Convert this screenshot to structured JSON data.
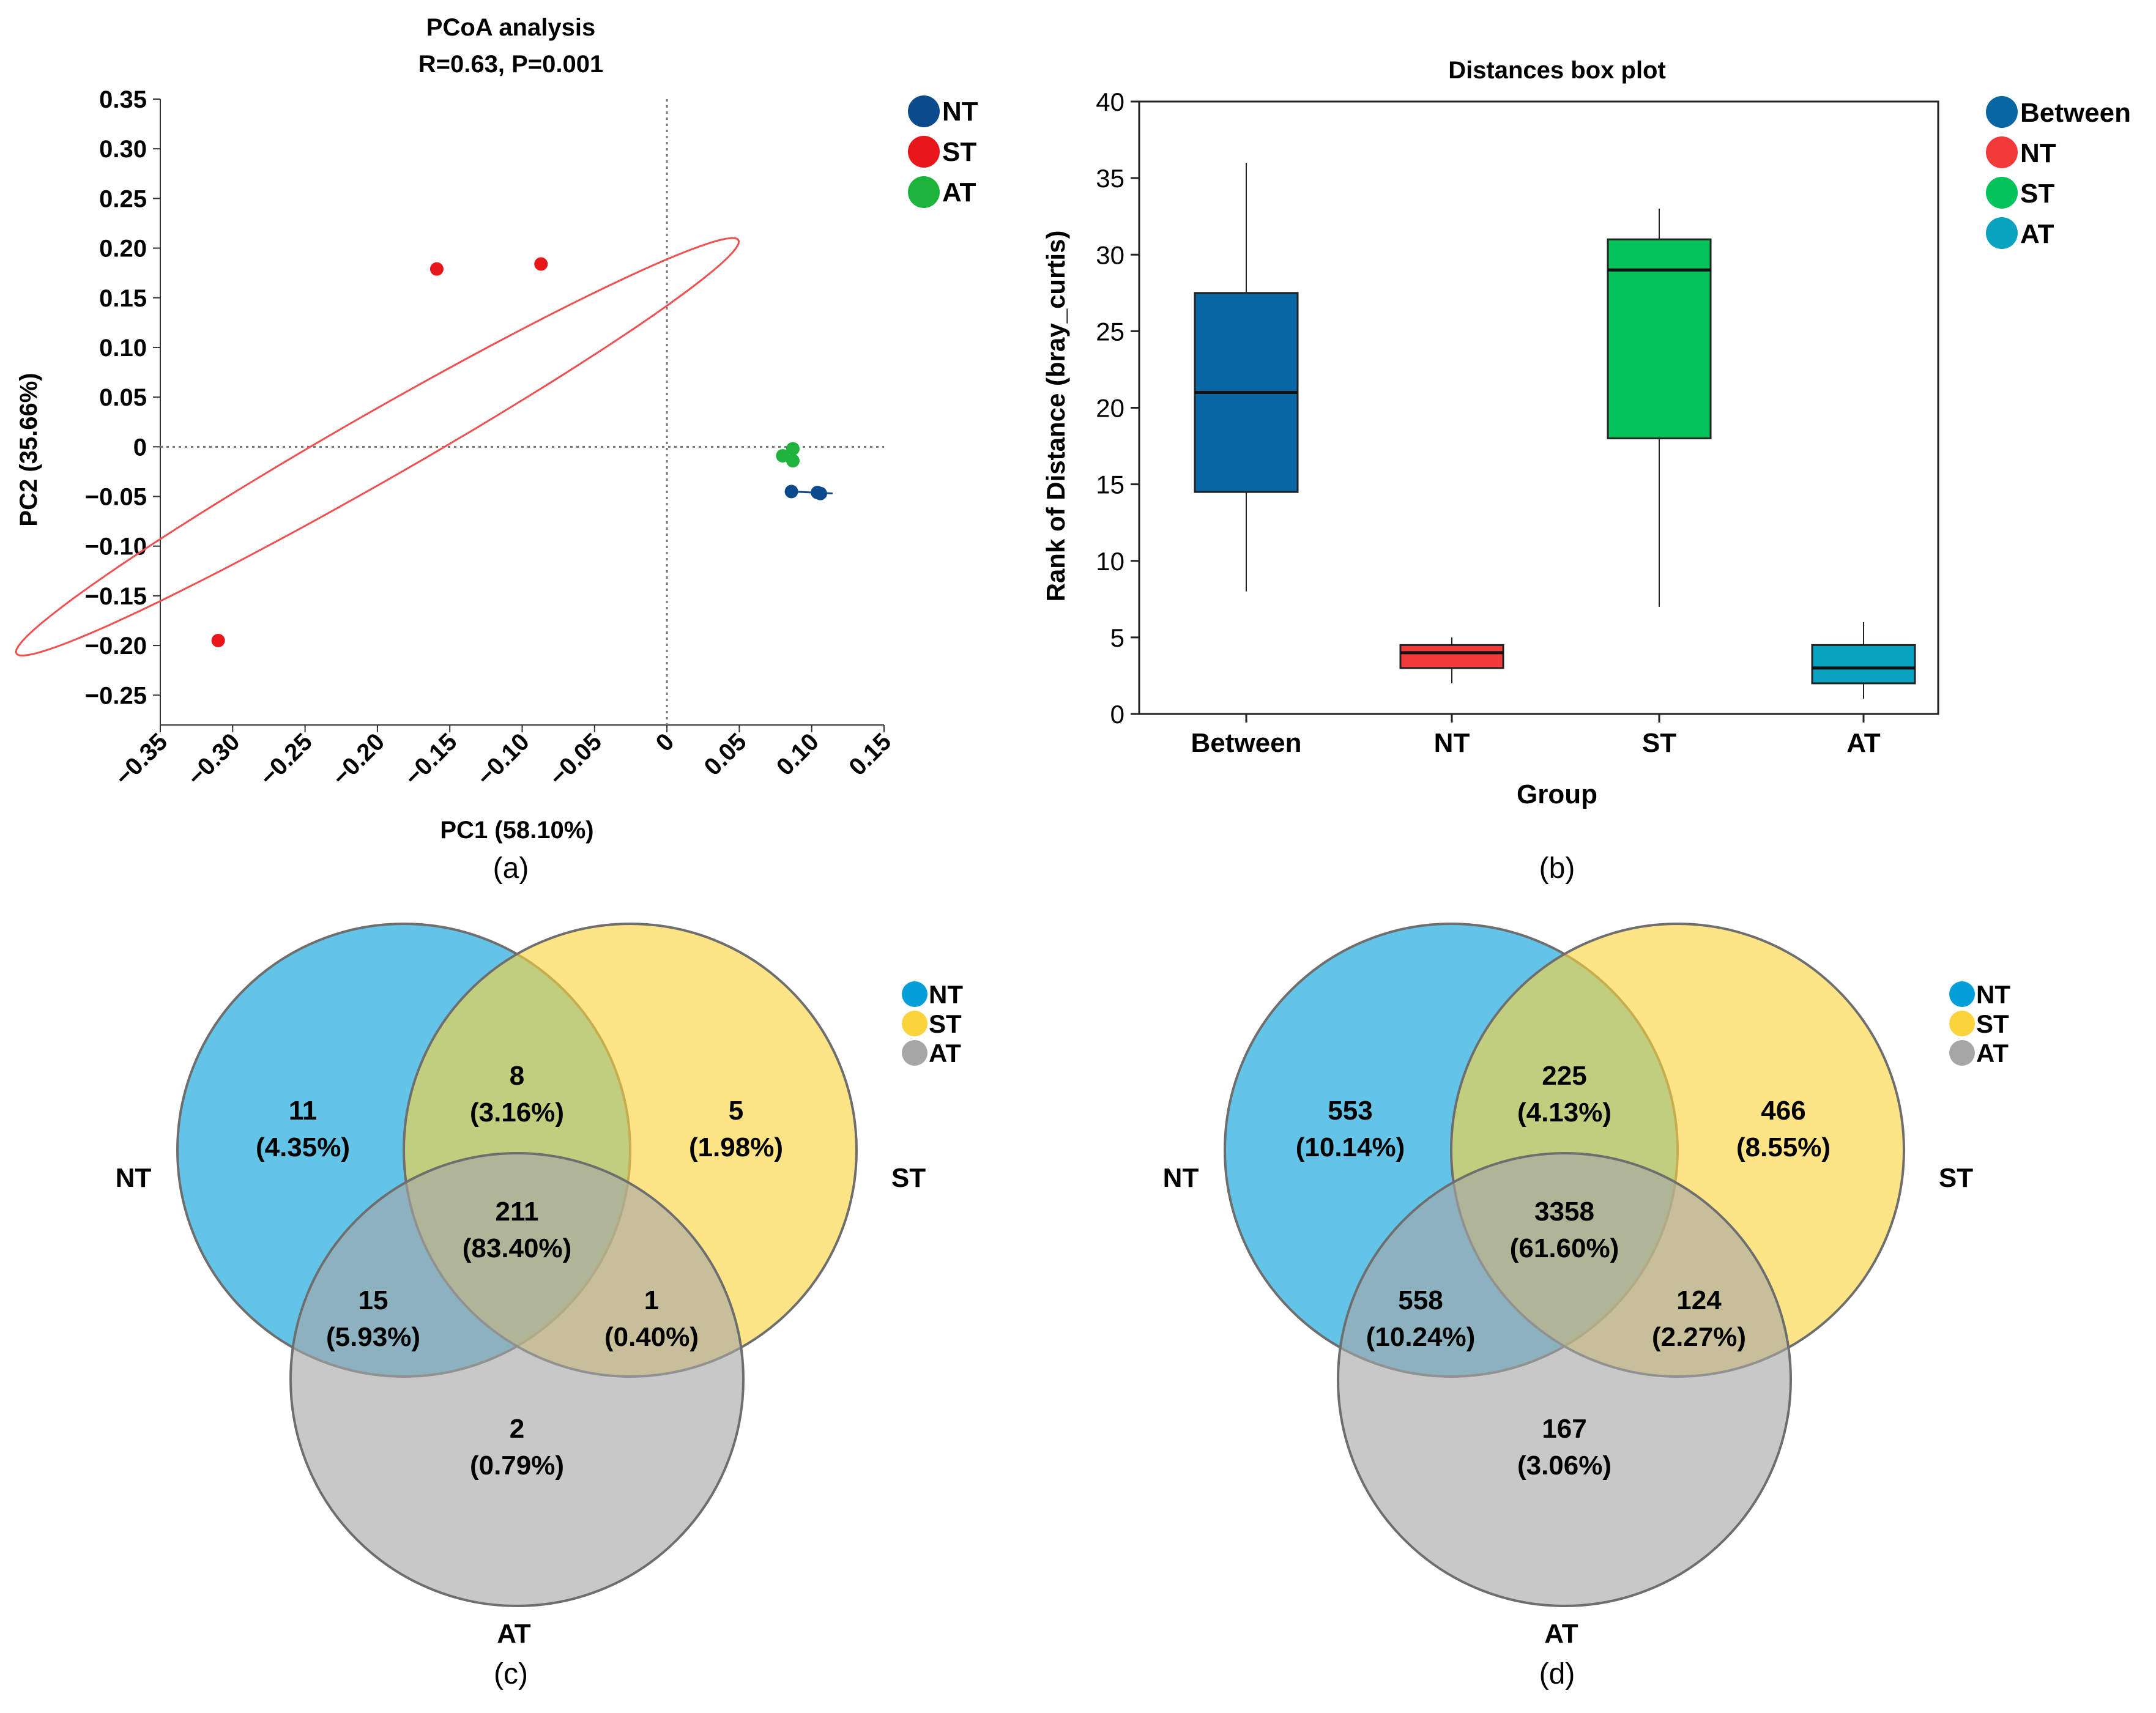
{
  "chart_data": [
    {
      "type": "scatter",
      "panel": "(a)",
      "title": "PCoA analysis",
      "subtitle": "R=0.63, P=0.001",
      "xlabel": "PC1 (58.10%)",
      "ylabel": "PC2 (35.66%)",
      "xlim": [
        -0.35,
        0.15
      ],
      "ylim": [
        -0.28,
        0.35
      ],
      "xticks": [
        -0.35,
        -0.3,
        -0.25,
        -0.2,
        -0.15,
        -0.1,
        -0.05,
        0,
        0.05,
        0.1,
        0.15
      ],
      "xtick_labels": [
        "−0.35",
        "−0.30",
        "−0.25",
        "−0.20",
        "−0.15",
        "−0.10",
        "−0.05",
        "0",
        "0.05",
        "0.10",
        "0.15"
      ],
      "yticks": [
        0.35,
        0.3,
        0.25,
        0.2,
        0.15,
        0.1,
        0.05,
        0,
        -0.05,
        -0.1,
        -0.15,
        -0.2,
        -0.25
      ],
      "ytick_labels": [
        "0.35",
        "0.30",
        "0.25",
        "0.20",
        "0.15",
        "0.10",
        "0.05",
        "0",
        "−0.05",
        "−0.10",
        "−0.15",
        "−0.20",
        "−0.25"
      ],
      "series": [
        {
          "name": "NT",
          "color": "#0b4a8c",
          "points": [
            [
              0.086,
              -0.045
            ],
            [
              0.104,
              -0.046
            ],
            [
              0.106,
              -0.047
            ]
          ]
        },
        {
          "name": "ST",
          "color": "#e8161b",
          "points": [
            [
              -0.31,
              -0.195
            ],
            [
              -0.159,
              0.179
            ],
            [
              -0.087,
              0.184
            ]
          ]
        },
        {
          "name": "AT",
          "color": "#1eb43c",
          "points": [
            [
              0.08,
              -0.009
            ],
            [
              0.087,
              -0.002
            ],
            [
              0.087,
              -0.014
            ]
          ]
        }
      ],
      "ellipses": [
        {
          "group": "ST",
          "color": "#f05050",
          "center": [
            -0.2,
            0.0
          ],
          "semi_major": 0.325,
          "semi_minor": 0.03,
          "angle_deg": 40
        }
      ],
      "legend": [
        {
          "label": "NT",
          "color": "#0b4a8c"
        },
        {
          "label": "ST",
          "color": "#e8161b"
        },
        {
          "label": "AT",
          "color": "#1eb43c"
        }
      ],
      "caption": "(a)"
    },
    {
      "type": "box",
      "panel": "(b)",
      "title": "Distances box plot",
      "xlabel": "Group",
      "ylabel": "Rank of Distance (bray_curtis)",
      "ylim": [
        0,
        40
      ],
      "yticks": [
        0,
        5,
        10,
        15,
        20,
        25,
        30,
        35,
        40
      ],
      "categories": [
        "Between",
        "NT",
        "ST",
        "AT"
      ],
      "boxes": [
        {
          "name": "Between",
          "color": "#0766a3",
          "min": 8,
          "q1": 14.5,
          "median": 21,
          "q3": 27.5,
          "max": 36
        },
        {
          "name": "NT",
          "color": "#f23a3a",
          "min": 2,
          "q1": 3,
          "median": 4,
          "q3": 4.5,
          "max": 5
        },
        {
          "name": "ST",
          "color": "#04c35a",
          "min": 7,
          "q1": 18,
          "median": 29,
          "q3": 31,
          "max": 33
        },
        {
          "name": "AT",
          "color": "#0aa3bf",
          "min": 1,
          "q1": 2,
          "median": 3,
          "q3": 4.5,
          "max": 6
        }
      ],
      "legend": [
        {
          "label": "Between",
          "color": "#0766a3"
        },
        {
          "label": "NT",
          "color": "#f23a3a"
        },
        {
          "label": "ST",
          "color": "#04c35a"
        },
        {
          "label": "AT",
          "color": "#0aa3bf"
        }
      ],
      "caption": "(b)"
    },
    {
      "type": "venn",
      "panel": "(c)",
      "sets": [
        {
          "label": "NT",
          "color": "#049fd8"
        },
        {
          "label": "ST",
          "color": "#fbd33d"
        },
        {
          "label": "AT",
          "color": "#a6a6a6"
        }
      ],
      "regions": [
        {
          "key": "NT",
          "count": "11",
          "pct": "(4.35%)"
        },
        {
          "key": "NT&ST",
          "count": "8",
          "pct": "(3.16%)"
        },
        {
          "key": "ST",
          "count": "5",
          "pct": "(1.98%)"
        },
        {
          "key": "NT&ST&AT",
          "count": "211",
          "pct": "(83.40%)"
        },
        {
          "key": "NT&AT",
          "count": "15",
          "pct": "(5.93%)"
        },
        {
          "key": "ST&AT",
          "count": "1",
          "pct": "(0.40%)"
        },
        {
          "key": "AT",
          "count": "2",
          "pct": "(0.79%)"
        }
      ],
      "legend": [
        {
          "label": "NT",
          "color": "#049fd8"
        },
        {
          "label": "ST",
          "color": "#fbd33d"
        },
        {
          "label": "AT",
          "color": "#a6a6a6"
        }
      ],
      "caption": "(c)"
    },
    {
      "type": "venn",
      "panel": "(d)",
      "sets": [
        {
          "label": "NT",
          "color": "#049fd8"
        },
        {
          "label": "ST",
          "color": "#fbd33d"
        },
        {
          "label": "AT",
          "color": "#a6a6a6"
        }
      ],
      "regions": [
        {
          "key": "NT",
          "count": "553",
          "pct": "(10.14%)"
        },
        {
          "key": "NT&ST",
          "count": "225",
          "pct": "(4.13%)"
        },
        {
          "key": "ST",
          "count": "466",
          "pct": "(8.55%)"
        },
        {
          "key": "NT&ST&AT",
          "count": "3358",
          "pct": "(61.60%)"
        },
        {
          "key": "NT&AT",
          "count": "558",
          "pct": "(10.24%)"
        },
        {
          "key": "ST&AT",
          "count": "124",
          "pct": "(2.27%)"
        },
        {
          "key": "AT",
          "count": "167",
          "pct": "(3.06%)"
        }
      ],
      "legend": [
        {
          "label": "NT",
          "color": "#049fd8"
        },
        {
          "label": "ST",
          "color": "#fbd33d"
        },
        {
          "label": "AT",
          "color": "#a6a6a6"
        }
      ],
      "caption": "(d)"
    }
  ]
}
